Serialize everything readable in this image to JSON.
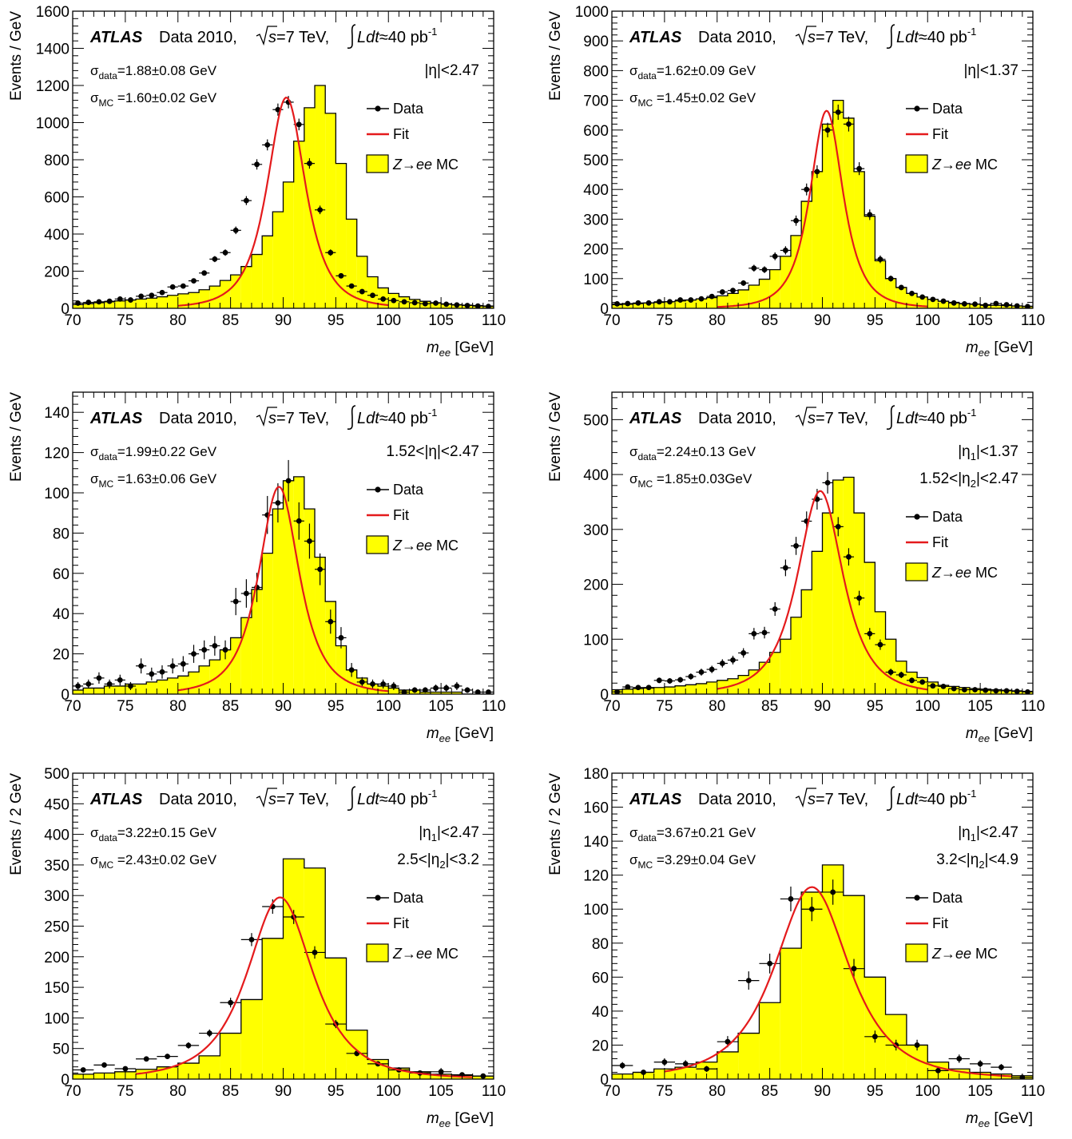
{
  "header": {
    "atlas": "ATLAS",
    "data_label": "Data 2010,",
    "sqrt_s": "s",
    "energy": "=7 TeV,",
    "lumi_L": "L",
    "lumi_dt": "dt",
    "lumi_value": "≈40 pb",
    "lumi_exp": "-1"
  },
  "legend": {
    "data": "Data",
    "fit": "Fit",
    "mc_math": "Z→ee",
    "mc_suffix": "MC"
  },
  "xlabel": {
    "m": "m",
    "sub": "ee",
    "unit": "[GeV]"
  },
  "colors": {
    "mc_fill": "#ffff00",
    "fit_line": "#e41a1c",
    "data": "#000000"
  },
  "chart_data": [
    {
      "type": "bar",
      "ylabel": "Events / GeV",
      "xlim": [
        70,
        110
      ],
      "ylim": [
        0,
        1600
      ],
      "yticks": [
        0,
        200,
        400,
        600,
        800,
        1000,
        1200,
        1400,
        1600
      ],
      "xticks": [
        70,
        75,
        80,
        85,
        90,
        95,
        100,
        105,
        110
      ],
      "stats": [
        {
          "sym": "σ",
          "sub": "data",
          "val": "=1.88±0.08 GeV"
        },
        {
          "sym": "σ",
          "sub": "MC",
          "val": " =1.60±0.02 GeV"
        }
      ],
      "region": [
        [
          {
            "t": "|η|<2.47"
          }
        ]
      ],
      "mc": {
        "bin_edges_start": 70,
        "bin_width": 1,
        "values": [
          20,
          25,
          30,
          35,
          40,
          45,
          50,
          55,
          62,
          70,
          78,
          85,
          100,
          120,
          150,
          180,
          225,
          290,
          390,
          520,
          680,
          900,
          1080,
          1200,
          1050,
          780,
          480,
          280,
          170,
          110,
          80,
          62,
          48,
          38,
          30,
          24,
          20,
          17,
          15,
          12
        ]
      },
      "data": {
        "x": [
          70.5,
          71.5,
          72.5,
          73.5,
          74.5,
          75.5,
          76.5,
          77.5,
          78.5,
          79.5,
          80.5,
          81.5,
          82.5,
          83.5,
          84.5,
          85.5,
          86.5,
          87.5,
          88.5,
          89.5,
          90.5,
          91.5,
          92.5,
          93.5,
          94.5,
          95.5,
          96.5,
          97.5,
          98.5,
          99.5,
          100.5,
          101.5,
          102.5,
          103.5,
          104.5,
          105.5,
          106.5,
          107.5,
          108.5,
          109.5
        ],
        "y": [
          28,
          32,
          35,
          38,
          50,
          45,
          65,
          70,
          85,
          115,
          120,
          148,
          190,
          265,
          300,
          420,
          580,
          775,
          880,
          1070,
          1110,
          990,
          780,
          530,
          300,
          175,
          120,
          90,
          70,
          50,
          42,
          35,
          30,
          25,
          28,
          22,
          18,
          15,
          12,
          10
        ]
      },
      "fit": {
        "range": [
          80,
          100
        ],
        "mean": 90.3,
        "sigma": 1.88,
        "peak": 1135
      }
    },
    {
      "type": "bar",
      "ylabel": "Events / GeV",
      "xlim": [
        70,
        110
      ],
      "ylim": [
        0,
        1000
      ],
      "yticks": [
        0,
        100,
        200,
        300,
        400,
        500,
        600,
        700,
        800,
        900,
        1000
      ],
      "xticks": [
        70,
        75,
        80,
        85,
        90,
        95,
        100,
        105,
        110
      ],
      "stats": [
        {
          "sym": "σ",
          "sub": "data",
          "val": "=1.62±0.09 GeV"
        },
        {
          "sym": "σ",
          "sub": "MC",
          "val": " =1.45±0.02 GeV"
        }
      ],
      "region": [
        [
          {
            "t": "|η|<1.37"
          }
        ]
      ],
      "mc": {
        "bin_edges_start": 70,
        "bin_width": 1,
        "values": [
          12,
          14,
          16,
          18,
          20,
          22,
          25,
          28,
          32,
          36,
          42,
          50,
          62,
          78,
          98,
          130,
          175,
          245,
          360,
          460,
          620,
          700,
          640,
          460,
          310,
          160,
          100,
          70,
          50,
          38,
          30,
          24,
          20,
          16,
          14,
          12,
          10,
          9,
          8,
          7
        ]
      },
      "data": {
        "x": [
          70.5,
          71.5,
          72.5,
          73.5,
          74.5,
          75.5,
          76.5,
          77.5,
          78.5,
          79.5,
          80.5,
          81.5,
          82.5,
          83.5,
          84.5,
          85.5,
          86.5,
          87.5,
          88.5,
          89.5,
          90.5,
          91.5,
          92.5,
          93.5,
          94.5,
          95.5,
          96.5,
          97.5,
          98.5,
          99.5,
          100.5,
          101.5,
          102.5,
          103.5,
          104.5,
          105.5,
          106.5,
          107.5,
          108.5,
          109.5
        ],
        "y": [
          15,
          16,
          18,
          18,
          22,
          22,
          28,
          28,
          32,
          40,
          55,
          60,
          85,
          135,
          130,
          175,
          195,
          295,
          400,
          460,
          600,
          660,
          620,
          470,
          315,
          165,
          100,
          70,
          50,
          38,
          30,
          24,
          18,
          15,
          14,
          10,
          16,
          12,
          8,
          6
        ]
      },
      "fit": {
        "range": [
          80,
          100
        ],
        "mean": 90.4,
        "sigma": 1.62,
        "peak": 665
      }
    },
    {
      "type": "bar",
      "ylabel": "Events / GeV",
      "xlim": [
        70,
        110
      ],
      "ylim": [
        0,
        150
      ],
      "yticks": [
        0,
        20,
        40,
        60,
        80,
        100,
        120,
        140
      ],
      "xticks": [
        70,
        75,
        80,
        85,
        90,
        95,
        100,
        105,
        110
      ],
      "stats": [
        {
          "sym": "σ",
          "sub": "data",
          "val": "=1.99±0.22 GeV"
        },
        {
          "sym": "σ",
          "sub": "MC",
          "val": " =1.63±0.06 GeV"
        }
      ],
      "region": [
        [
          {
            "t": "1.52<|η|<2.47"
          }
        ]
      ],
      "mc": {
        "bin_edges_start": 70,
        "bin_width": 1,
        "values": [
          2,
          3,
          3,
          4,
          4,
          5,
          5,
          6,
          7,
          8,
          9,
          11,
          14,
          17,
          22,
          28,
          38,
          52,
          70,
          92,
          106,
          108,
          92,
          68,
          46,
          24,
          12,
          8,
          5,
          4,
          3,
          2,
          2,
          1,
          1,
          1,
          1,
          0,
          0,
          0
        ]
      },
      "data": {
        "x": [
          70.5,
          71.5,
          72.5,
          73.5,
          74.5,
          75.5,
          76.5,
          77.5,
          78.5,
          79.5,
          80.5,
          81.5,
          82.5,
          83.5,
          84.5,
          85.5,
          86.5,
          87.5,
          88.5,
          89.5,
          90.5,
          91.5,
          92.5,
          93.5,
          94.5,
          95.5,
          96.5,
          97.5,
          98.5,
          99.5,
          100.5,
          101.5,
          102.5,
          103.5,
          104.5,
          105.5,
          106.5,
          107.5,
          108.5,
          109.5
        ],
        "y": [
          4,
          5,
          8,
          5,
          7,
          4,
          14,
          10,
          11,
          14,
          15,
          20,
          22,
          24,
          22,
          46,
          50,
          53,
          89,
          95,
          106,
          86,
          76,
          62,
          36,
          28,
          12,
          6,
          5,
          5,
          4,
          1,
          2,
          2,
          3,
          3,
          4,
          2,
          1,
          1
        ]
      },
      "fit": {
        "range": [
          80,
          100
        ],
        "mean": 89.6,
        "sigma": 1.99,
        "peak": 103
      }
    },
    {
      "type": "bar",
      "ylabel": "Events / GeV",
      "xlim": [
        70,
        110
      ],
      "ylim": [
        0,
        550
      ],
      "yticks": [
        0,
        100,
        200,
        300,
        400,
        500
      ],
      "xticks": [
        70,
        75,
        80,
        85,
        90,
        95,
        100,
        105,
        110
      ],
      "stats": [
        {
          "sym": "σ",
          "sub": "data",
          "val": "=2.24±0.13 GeV"
        },
        {
          "sym": "σ",
          "sub": "MC",
          "val": " =1.85±0.03GeV"
        }
      ],
      "region": [
        [
          {
            "t": "|η"
          },
          {
            "t": "1",
            "sub": true
          },
          {
            "t": "|<1.37"
          }
        ],
        [
          {
            "t": "1.52<|η"
          },
          {
            "t": "2",
            "sub": true
          },
          {
            "t": "|<2.47"
          }
        ]
      ],
      "mc": {
        "bin_edges_start": 70,
        "bin_width": 1,
        "values": [
          8,
          9,
          10,
          11,
          12,
          13,
          15,
          17,
          19,
          22,
          25,
          28,
          34,
          44,
          58,
          76,
          100,
          140,
          190,
          260,
          330,
          390,
          395,
          330,
          240,
          150,
          100,
          60,
          40,
          30,
          22,
          16,
          14,
          12,
          10,
          9,
          8,
          7,
          6,
          5
        ]
      },
      "data": {
        "x": [
          70.5,
          71.5,
          72.5,
          73.5,
          74.5,
          75.5,
          76.5,
          77.5,
          78.5,
          79.5,
          80.5,
          81.5,
          82.5,
          83.5,
          84.5,
          85.5,
          86.5,
          87.5,
          88.5,
          89.5,
          90.5,
          91.5,
          92.5,
          93.5,
          94.5,
          95.5,
          96.5,
          97.5,
          98.5,
          99.5,
          100.5,
          101.5,
          102.5,
          103.5,
          104.5,
          105.5,
          106.5,
          107.5,
          108.5,
          109.5
        ],
        "y": [
          4,
          13,
          12,
          12,
          25,
          24,
          26,
          32,
          40,
          45,
          56,
          62,
          75,
          110,
          112,
          155,
          230,
          270,
          315,
          355,
          385,
          305,
          250,
          175,
          110,
          90,
          40,
          35,
          25,
          22,
          15,
          14,
          10,
          8,
          8,
          7,
          6,
          6,
          5,
          4
        ]
      },
      "fit": {
        "range": [
          80,
          100
        ],
        "mean": 89.8,
        "sigma": 2.24,
        "peak": 370
      }
    },
    {
      "type": "bar",
      "ylabel": "Events / 2 GeV",
      "xlim": [
        70,
        110
      ],
      "ylim": [
        0,
        500
      ],
      "yticks": [
        0,
        50,
        100,
        150,
        200,
        250,
        300,
        350,
        400,
        450,
        500
      ],
      "xticks": [
        70,
        75,
        80,
        85,
        90,
        95,
        100,
        105,
        110
      ],
      "stats": [
        {
          "sym": "σ",
          "sub": "data",
          "val": "=3.22±0.15 GeV"
        },
        {
          "sym": "σ",
          "sub": "MC",
          "val": " =2.43±0.02 GeV"
        }
      ],
      "region": [
        [
          {
            "t": "|η"
          },
          {
            "t": "1",
            "sub": true
          },
          {
            "t": "|<2.47"
          }
        ],
        [
          {
            "t": "2.5<|η"
          },
          {
            "t": "2",
            "sub": true
          },
          {
            "t": "|<3.2"
          }
        ]
      ],
      "mc": {
        "bin_edges_start": 70,
        "bin_width": 2,
        "values": [
          8,
          10,
          12,
          16,
          20,
          26,
          38,
          75,
          130,
          230,
          360,
          345,
          198,
          80,
          32,
          18,
          12,
          8,
          6,
          5
        ]
      },
      "data": {
        "x": [
          71,
          73,
          75,
          77,
          79,
          81,
          83,
          85,
          87,
          89,
          91,
          93,
          95,
          97,
          99,
          101,
          103,
          105,
          107,
          109
        ],
        "y": [
          15,
          23,
          17,
          33,
          37,
          55,
          75,
          125,
          228,
          282,
          265,
          207,
          90,
          42,
          25,
          15,
          10,
          12,
          7,
          5
        ]
      },
      "fit": {
        "range": [
          76,
          108
        ],
        "mean": 89.7,
        "sigma": 3.22,
        "peak": 297
      }
    },
    {
      "type": "bar",
      "ylabel": "Events / 2 GeV",
      "xlim": [
        70,
        110
      ],
      "ylim": [
        0,
        180
      ],
      "yticks": [
        0,
        20,
        40,
        60,
        80,
        100,
        120,
        140,
        160,
        180
      ],
      "xticks": [
        70,
        75,
        80,
        85,
        90,
        95,
        100,
        105,
        110
      ],
      "stats": [
        {
          "sym": "σ",
          "sub": "data",
          "val": "=3.67±0.21 GeV"
        },
        {
          "sym": "σ",
          "sub": "MC",
          "val": " =3.29±0.04 GeV"
        }
      ],
      "region": [
        [
          {
            "t": "|η"
          },
          {
            "t": "1",
            "sub": true
          },
          {
            "t": "|<2.47"
          }
        ],
        [
          {
            "t": "3.2<|η"
          },
          {
            "t": "2",
            "sub": true
          },
          {
            "t": "|<4.9"
          }
        ]
      ],
      "mc": {
        "bin_edges_start": 70,
        "bin_width": 2,
        "values": [
          3,
          4,
          6,
          7,
          10,
          16,
          27,
          45,
          77,
          110,
          126,
          108,
          60,
          38,
          20,
          10,
          6,
          4,
          3,
          2
        ]
      },
      "data": {
        "x": [
          71,
          73,
          75,
          77,
          79,
          81,
          83,
          85,
          87,
          89,
          91,
          93,
          95,
          97,
          99,
          101,
          103,
          105,
          107,
          109
        ],
        "y": [
          8,
          4,
          10,
          9,
          6,
          22,
          58,
          68,
          106,
          100,
          110,
          65,
          25,
          20,
          20,
          5,
          12,
          9,
          7,
          1
        ]
      },
      "fit": {
        "range": [
          75,
          108
        ],
        "mean": 89.0,
        "sigma": 3.67,
        "peak": 113
      }
    }
  ]
}
